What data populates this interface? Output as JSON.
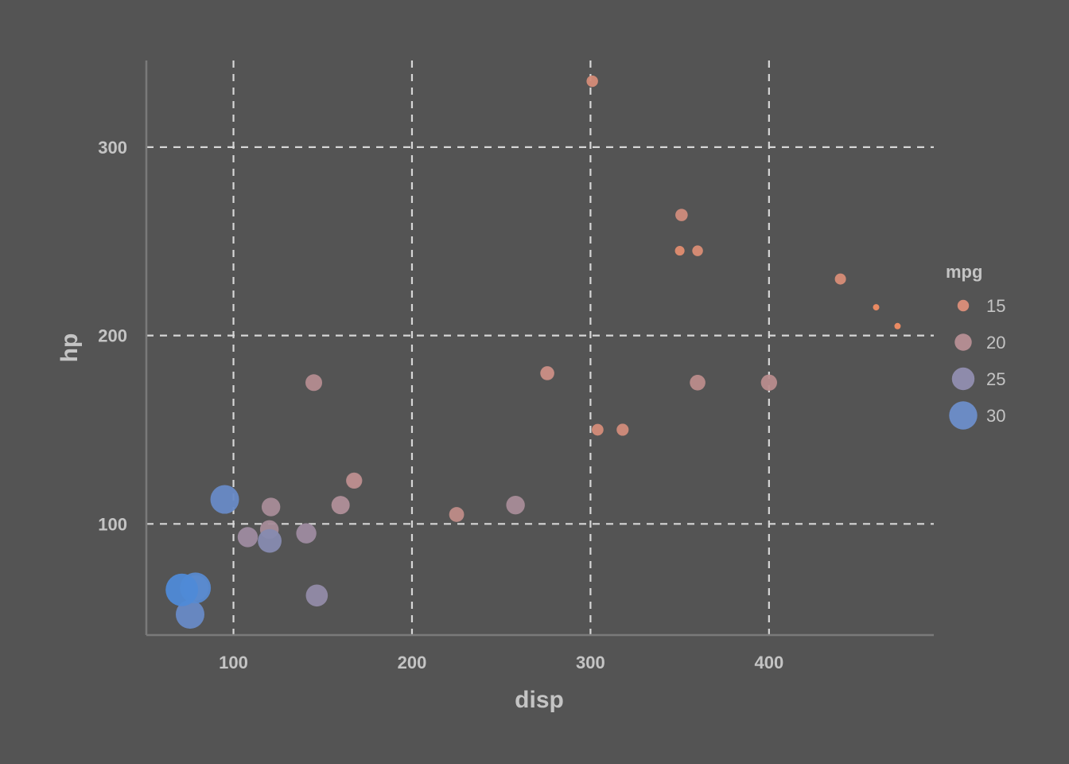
{
  "chart_data": {
    "type": "scatter",
    "title": "",
    "xlabel": "disp",
    "ylabel": "hp",
    "legend_title": "mpg",
    "legend_position": "right",
    "xlim": [
      51.2,
      492.3
    ],
    "ylim": [
      41,
      346
    ],
    "x_ticks": [
      100,
      200,
      300,
      400
    ],
    "y_ticks": [
      100,
      200,
      300
    ],
    "grid": true,
    "grid_style": "dashed",
    "background_color": "#545454",
    "color_low": "#4e8ad8",
    "color_high": "#f28d64",
    "size_and_color_variable": "mpg",
    "legend": [
      {
        "label": "15",
        "mpg": 15
      },
      {
        "label": "20",
        "mpg": 20
      },
      {
        "label": "25",
        "mpg": 25
      },
      {
        "label": "30",
        "mpg": 30
      }
    ],
    "points": [
      {
        "disp": 160.0,
        "hp": 110,
        "mpg": 21.0
      },
      {
        "disp": 160.0,
        "hp": 110,
        "mpg": 21.0
      },
      {
        "disp": 108.0,
        "hp": 93,
        "mpg": 22.8
      },
      {
        "disp": 258.0,
        "hp": 110,
        "mpg": 21.4
      },
      {
        "disp": 360.0,
        "hp": 175,
        "mpg": 18.7
      },
      {
        "disp": 225.0,
        "hp": 105,
        "mpg": 18.1
      },
      {
        "disp": 360.0,
        "hp": 245,
        "mpg": 14.3
      },
      {
        "disp": 146.7,
        "hp": 62,
        "mpg": 24.4
      },
      {
        "disp": 140.8,
        "hp": 95,
        "mpg": 22.8
      },
      {
        "disp": 167.6,
        "hp": 123,
        "mpg": 19.2
      },
      {
        "disp": 167.6,
        "hp": 123,
        "mpg": 17.8
      },
      {
        "disp": 275.8,
        "hp": 180,
        "mpg": 16.4
      },
      {
        "disp": 275.8,
        "hp": 180,
        "mpg": 17.3
      },
      {
        "disp": 275.8,
        "hp": 180,
        "mpg": 15.2
      },
      {
        "disp": 472.0,
        "hp": 205,
        "mpg": 10.4
      },
      {
        "disp": 460.0,
        "hp": 215,
        "mpg": 10.4
      },
      {
        "disp": 440.0,
        "hp": 230,
        "mpg": 14.7
      },
      {
        "disp": 78.7,
        "hp": 66,
        "mpg": 32.4
      },
      {
        "disp": 75.7,
        "hp": 52,
        "mpg": 30.4
      },
      {
        "disp": 71.1,
        "hp": 65,
        "mpg": 33.9
      },
      {
        "disp": 120.1,
        "hp": 97,
        "mpg": 21.5
      },
      {
        "disp": 318.0,
        "hp": 150,
        "mpg": 15.5
      },
      {
        "disp": 304.0,
        "hp": 150,
        "mpg": 15.2
      },
      {
        "disp": 350.0,
        "hp": 245,
        "mpg": 13.3
      },
      {
        "disp": 400.0,
        "hp": 175,
        "mpg": 19.2
      },
      {
        "disp": 79.0,
        "hp": 66,
        "mpg": 27.3
      },
      {
        "disp": 120.3,
        "hp": 91,
        "mpg": 26.0
      },
      {
        "disp": 95.1,
        "hp": 113,
        "mpg": 30.4
      },
      {
        "disp": 351.0,
        "hp": 264,
        "mpg": 15.8
      },
      {
        "disp": 145.0,
        "hp": 175,
        "mpg": 19.7
      },
      {
        "disp": 301.0,
        "hp": 335,
        "mpg": 15.0
      },
      {
        "disp": 121.0,
        "hp": 109,
        "mpg": 21.4
      }
    ]
  }
}
